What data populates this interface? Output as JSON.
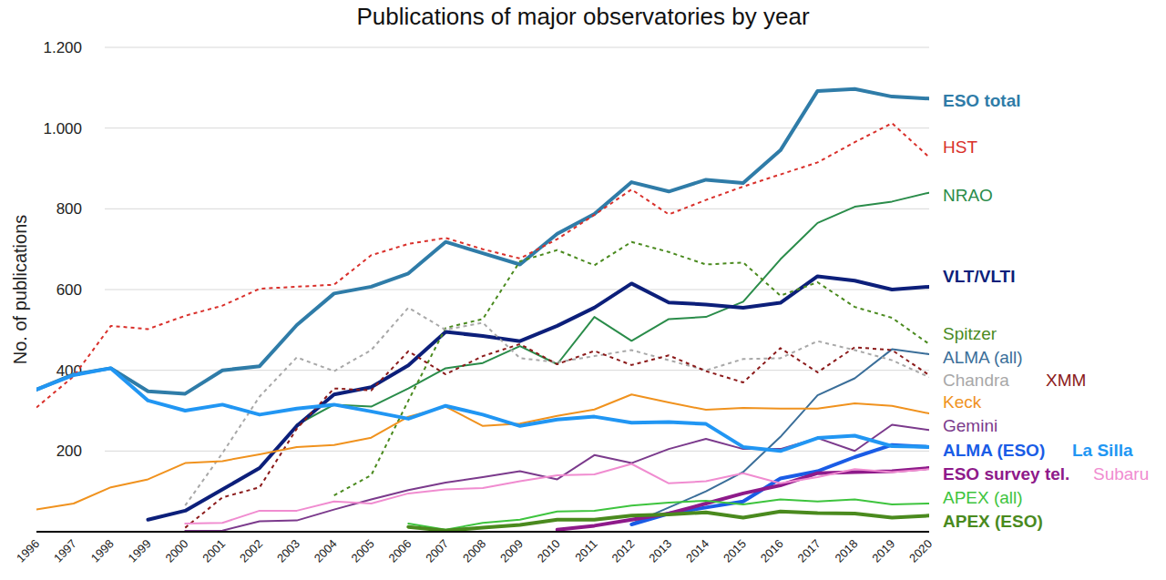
{
  "chart_data": {
    "type": "line",
    "title": "Publications of major observatories by year",
    "y_label": "No. of publications",
    "x": [
      1996,
      1997,
      1998,
      1999,
      2000,
      2001,
      2002,
      2003,
      2004,
      2005,
      2006,
      2007,
      2008,
      2009,
      2010,
      2011,
      2012,
      2013,
      2014,
      2015,
      2016,
      2017,
      2018,
      2019,
      2020
    ],
    "xlim": [
      1996,
      2020
    ],
    "xticks": [
      1996,
      1997,
      1998,
      1999,
      2000,
      2001,
      2002,
      2003,
      2004,
      2005,
      2006,
      2007,
      2008,
      2009,
      2010,
      2011,
      2012,
      2013,
      2014,
      2015,
      2016,
      2017,
      2018,
      2019,
      2020
    ],
    "ylim": [
      0,
      1200
    ],
    "yticks": [
      200,
      400,
      600,
      800,
      {
        "value": 1000,
        "label": "1.000"
      },
      {
        "value": 1200,
        "label": "1.200"
      }
    ],
    "grid": true,
    "legend": "right",
    "series": [
      {
        "name": "ESO total",
        "color": "#2f7ca8",
        "line_style": "bold",
        "values": [
          352,
          390,
          405,
          348,
          342,
          400,
          410,
          512,
          590,
          607,
          640,
          718,
          690,
          662,
          738,
          787,
          866,
          843,
          872,
          864,
          945,
          1092,
          1097,
          1078,
          1073
        ]
      },
      {
        "name": "HST",
        "color": "#d9302b",
        "line_style": "dashed",
        "values": [
          308,
          385,
          510,
          502,
          535,
          560,
          602,
          607,
          612,
          685,
          713,
          728,
          700,
          677,
          725,
          785,
          848,
          786,
          822,
          855,
          885,
          915,
          965,
          1012,
          928
        ]
      },
      {
        "name": "NRAO",
        "color": "#2a8c4a",
        "line_style": "solid",
        "values": [
          null,
          null,
          null,
          null,
          null,
          null,
          null,
          265,
          315,
          310,
          355,
          405,
          418,
          460,
          415,
          532,
          473,
          527,
          532,
          570,
          675,
          765,
          805,
          818,
          840
        ]
      },
      {
        "name": "VLT/VLTI",
        "color": "#0c1f7a",
        "line_style": "bold",
        "values": [
          null,
          null,
          null,
          30,
          52,
          105,
          158,
          262,
          340,
          358,
          412,
          495,
          485,
          472,
          510,
          555,
          615,
          568,
          563,
          555,
          567,
          633,
          622,
          600,
          607
        ]
      },
      {
        "name": "Spitzer",
        "color": "#4a8a1e",
        "line_style": "dashed",
        "values": [
          null,
          null,
          null,
          null,
          null,
          null,
          null,
          null,
          90,
          140,
          325,
          505,
          527,
          670,
          698,
          660,
          718,
          693,
          662,
          667,
          585,
          618,
          557,
          530,
          465
        ]
      },
      {
        "name": "ALMA (all)",
        "color": "#3a6e99",
        "line_style": "solid",
        "values": [
          null,
          null,
          null,
          null,
          null,
          null,
          null,
          null,
          null,
          null,
          null,
          null,
          null,
          null,
          null,
          null,
          20,
          60,
          100,
          148,
          235,
          338,
          380,
          452,
          440
        ]
      },
      {
        "name": "Chandra",
        "color": "#a8a8a8",
        "line_style": "dashed",
        "values": [
          null,
          null,
          null,
          null,
          65,
          195,
          335,
          432,
          398,
          450,
          555,
          500,
          518,
          430,
          420,
          435,
          450,
          425,
          400,
          428,
          430,
          472,
          450,
          425,
          383
        ]
      },
      {
        "name": "XMM",
        "color": "#8b1a1a",
        "line_style": "dashed",
        "values": [
          null,
          null,
          null,
          null,
          10,
          85,
          110,
          255,
          355,
          350,
          447,
          390,
          435,
          465,
          415,
          448,
          413,
          437,
          398,
          370,
          455,
          395,
          457,
          450,
          388
        ]
      },
      {
        "name": "Keck",
        "color": "#f0921e",
        "line_style": "solid",
        "values": [
          55,
          70,
          110,
          130,
          170,
          175,
          192,
          210,
          215,
          233,
          285,
          310,
          262,
          268,
          287,
          303,
          340,
          320,
          302,
          307,
          305,
          305,
          318,
          312,
          293
        ]
      },
      {
        "name": "Gemini",
        "color": "#7b3a8c",
        "line_style": "solid",
        "values": [
          null,
          null,
          null,
          null,
          2,
          3,
          26,
          28,
          55,
          80,
          103,
          122,
          135,
          150,
          130,
          190,
          170,
          205,
          230,
          205,
          205,
          232,
          200,
          265,
          252
        ]
      },
      {
        "name": "ALMA (ESO)",
        "color": "#1a5ce6",
        "line_style": "bold",
        "values": [
          null,
          null,
          null,
          null,
          null,
          null,
          null,
          null,
          null,
          null,
          null,
          null,
          null,
          null,
          null,
          null,
          18,
          45,
          60,
          75,
          132,
          150,
          185,
          215,
          210
        ]
      },
      {
        "name": "La Silla",
        "color": "#2196f3",
        "line_style": "bold",
        "values": [
          352,
          388,
          405,
          325,
          300,
          315,
          290,
          305,
          315,
          298,
          280,
          312,
          290,
          262,
          278,
          285,
          270,
          272,
          267,
          210,
          200,
          232,
          238,
          212,
          210
        ]
      },
      {
        "name": "ESO survey tel.",
        "color": "#8e1a8a",
        "line_style": "bold",
        "values": [
          null,
          null,
          null,
          null,
          null,
          null,
          null,
          null,
          null,
          null,
          null,
          null,
          null,
          null,
          5,
          15,
          30,
          45,
          70,
          95,
          115,
          145,
          148,
          150,
          158
        ]
      },
      {
        "name": "Subaru",
        "color": "#f08cd0",
        "line_style": "solid",
        "values": [
          null,
          null,
          null,
          null,
          20,
          22,
          52,
          52,
          75,
          70,
          95,
          105,
          108,
          125,
          140,
          142,
          168,
          120,
          125,
          145,
          120,
          135,
          155,
          148,
          155
        ]
      },
      {
        "name": "APEX (all)",
        "color": "#3ec43e",
        "line_style": "solid",
        "values": [
          null,
          null,
          null,
          null,
          null,
          null,
          null,
          null,
          null,
          null,
          20,
          5,
          22,
          30,
          50,
          52,
          65,
          72,
          77,
          68,
          80,
          75,
          80,
          68,
          70
        ]
      },
      {
        "name": "APEX (ESO)",
        "color": "#4a8a1e",
        "line_style": "bold",
        "values": [
          null,
          null,
          null,
          null,
          null,
          null,
          null,
          null,
          null,
          null,
          12,
          3,
          10,
          17,
          30,
          30,
          40,
          43,
          48,
          35,
          50,
          46,
          45,
          35,
          40
        ]
      }
    ]
  }
}
